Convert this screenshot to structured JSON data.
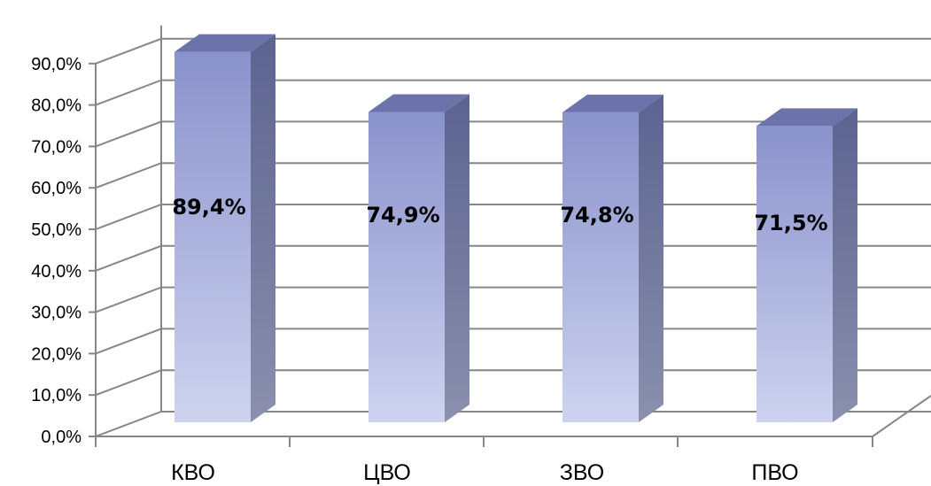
{
  "chart_data": {
    "type": "bar",
    "title": "",
    "xlabel": "",
    "ylabel": "",
    "categories": [
      "КВО",
      "ЦВО",
      "ЗВО",
      "ПВО"
    ],
    "values": [
      89.4,
      74.9,
      74.8,
      71.5
    ],
    "data_labels": [
      "89,4%",
      "74,9%",
      "74,8%",
      "71,5%"
    ],
    "ylim": [
      0,
      90
    ],
    "yticks": [
      0,
      10,
      20,
      30,
      40,
      50,
      60,
      70,
      80,
      90
    ],
    "ytick_labels": [
      "0,0%",
      "10,0%",
      "20,0%",
      "30,0%",
      "40,0%",
      "50,0%",
      "60,0%",
      "70,0%",
      "80,0%",
      "90,0%"
    ],
    "grid": true,
    "style": "3d-column",
    "colors": {
      "bar_front_top": "#8a92cc",
      "bar_front_bottom": "#cdd3ef",
      "bar_side_top": "#5c6390",
      "bar_side_bottom": "#8a90ad",
      "bar_top": "#6c73aa",
      "grid": "#868686"
    }
  }
}
